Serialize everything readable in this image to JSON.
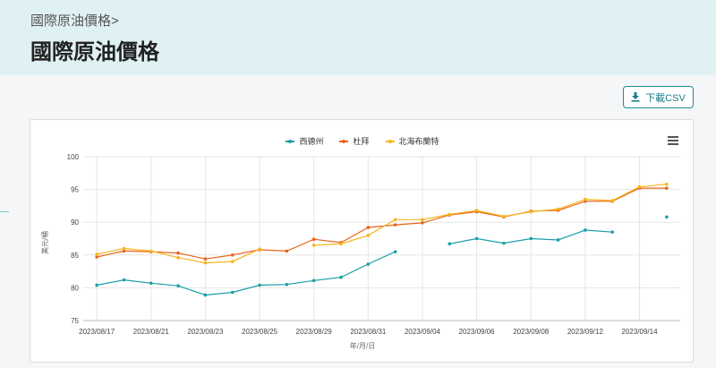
{
  "header": {
    "breadcrumb": "國際原油價格>",
    "title": "國際原油價格"
  },
  "toolbar": {
    "csv_label": "下載CSV"
  },
  "icons": {
    "download": "download-icon",
    "menu": "hamburger-menu-icon"
  },
  "colors": {
    "brand_bg": "#e0f1f3",
    "button": "#1a8a95"
  },
  "chart_data": {
    "type": "line",
    "xlabel": "年/月/日",
    "ylabel": "美元/桶",
    "ylim": [
      75,
      100
    ],
    "yticks": [
      75,
      80,
      85,
      90,
      95,
      100
    ],
    "grid": true,
    "legend_position": "top-center",
    "x": [
      "2023/08/17",
      "2023/08/18",
      "2023/08/21",
      "2023/08/22",
      "2023/08/23",
      "2023/08/24",
      "2023/08/25",
      "2023/08/28",
      "2023/08/29",
      "2023/08/30",
      "2023/08/31",
      "2023/09/01",
      "2023/09/04",
      "2023/09/05",
      "2023/09/06",
      "2023/09/07",
      "2023/09/08",
      "2023/09/11",
      "2023/09/12",
      "2023/09/13",
      "2023/09/14",
      "2023/09/15"
    ],
    "xtick_labels": [
      "2023/08/17",
      "2023/08/21",
      "2023/08/23",
      "2023/08/25",
      "2023/08/29",
      "2023/08/31",
      "2023/09/04",
      "2023/09/06",
      "2023/09/08",
      "2023/09/12",
      "2023/09/14"
    ],
    "series": [
      {
        "name": "西德州",
        "color": "#1a9fa8",
        "values": [
          80.4,
          81.2,
          80.7,
          80.3,
          78.9,
          79.3,
          80.4,
          80.5,
          81.1,
          81.6,
          83.6,
          85.5,
          null,
          86.7,
          87.5,
          86.8,
          87.5,
          87.3,
          88.8,
          88.5,
          null,
          90.8
        ]
      },
      {
        "name": "杜拜",
        "color": "#e8631c",
        "values": [
          84.7,
          85.6,
          85.5,
          85.3,
          84.4,
          85.0,
          85.8,
          85.6,
          87.4,
          86.9,
          89.2,
          89.6,
          89.9,
          91.1,
          91.6,
          90.8,
          91.7,
          91.8,
          93.2,
          93.2,
          95.2,
          95.2
        ]
      },
      {
        "name": "北海布蘭特",
        "color": "#f6b51e",
        "values": [
          85.1,
          86.0,
          85.6,
          84.6,
          83.8,
          84.0,
          85.9,
          null,
          86.5,
          86.7,
          88.0,
          90.4,
          90.4,
          91.2,
          91.8,
          90.9,
          91.6,
          92.0,
          93.5,
          93.3,
          95.4,
          95.8
        ]
      }
    ]
  }
}
